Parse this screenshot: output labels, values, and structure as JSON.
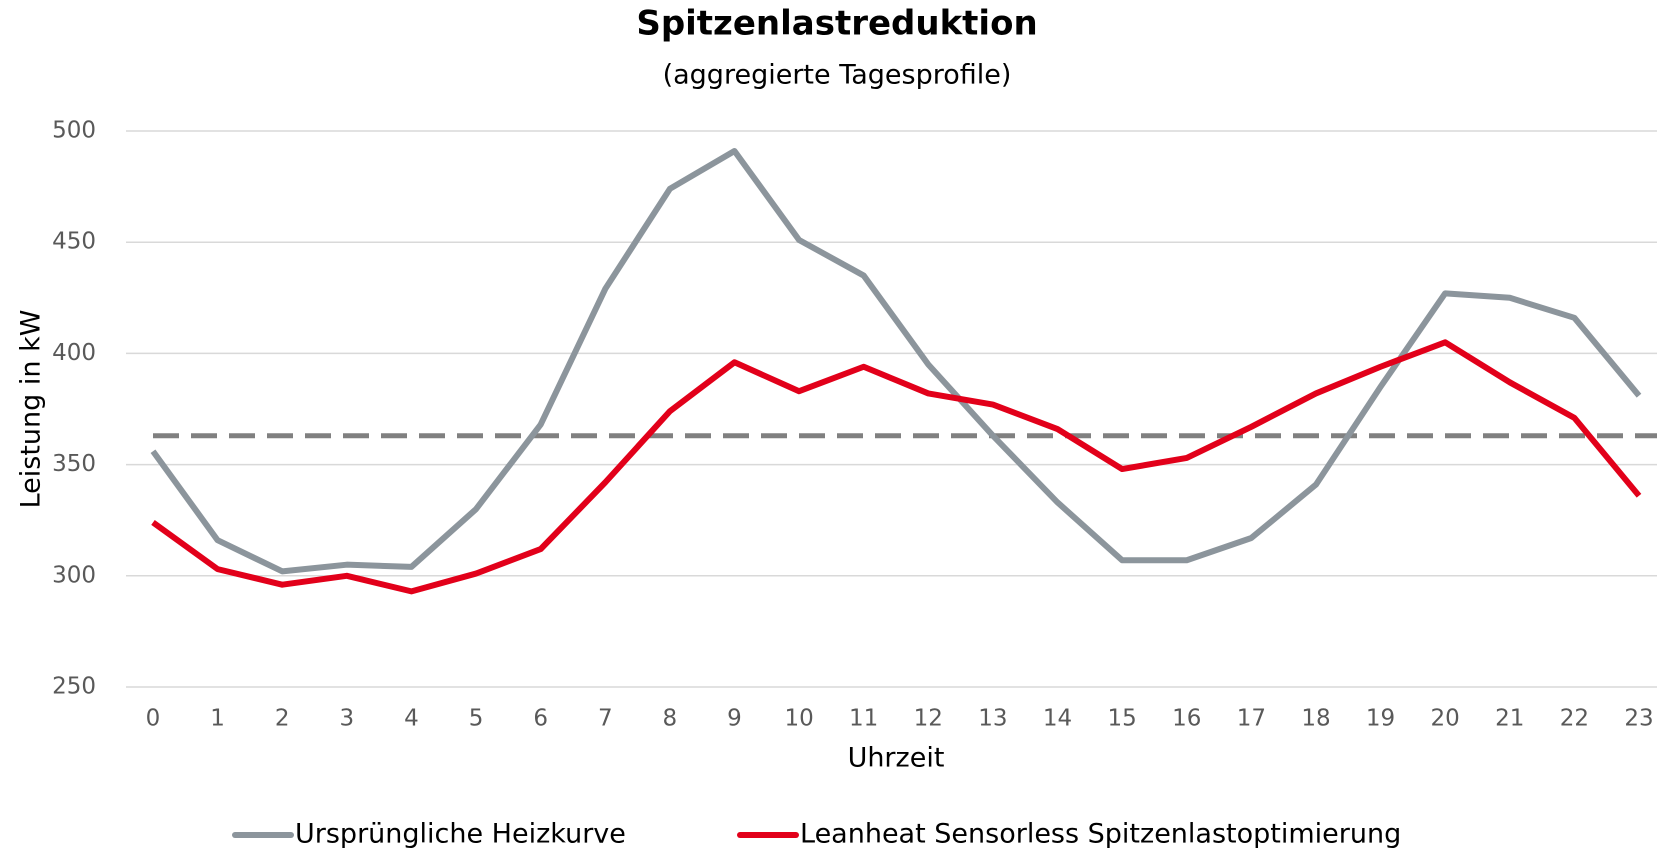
{
  "chart_data": {
    "type": "line",
    "title": "Spitzenlastreduktion",
    "subtitle": "(aggregierte Tagesprofile)",
    "x_label": "Uhrzeit",
    "y_label": "Leistung in kW",
    "x": [
      0,
      1,
      2,
      3,
      4,
      5,
      6,
      7,
      8,
      9,
      10,
      11,
      12,
      13,
      14,
      15,
      16,
      17,
      18,
      19,
      20,
      21,
      22,
      23
    ],
    "series": [
      {
        "name": "Ursprüngliche Heizkurve",
        "color": "#8c959c",
        "values": [
          356,
          316,
          302,
          305,
          304,
          330,
          368,
          429,
          474,
          491,
          451,
          435,
          395,
          363,
          333,
          307,
          307,
          317,
          341,
          385,
          427,
          425,
          416,
          381
        ]
      },
      {
        "name": "Leanheat Sensorless Spitzenlastoptimierung",
        "color": "#e2001a",
        "values": [
          324,
          303,
          296,
          300,
          293,
          301,
          312,
          342,
          374,
          396,
          383,
          394,
          382,
          377,
          366,
          348,
          353,
          367,
          382,
          394,
          405,
          387,
          371,
          336
        ]
      }
    ],
    "reference_line": {
      "value": 363,
      "color": "#808080",
      "style": "dashed"
    },
    "xlim": [
      0,
      23
    ],
    "ylim": [
      250,
      500
    ],
    "yticks": [
      250,
      300,
      350,
      400,
      450,
      500
    ],
    "grid": true,
    "legend": "bottom"
  }
}
